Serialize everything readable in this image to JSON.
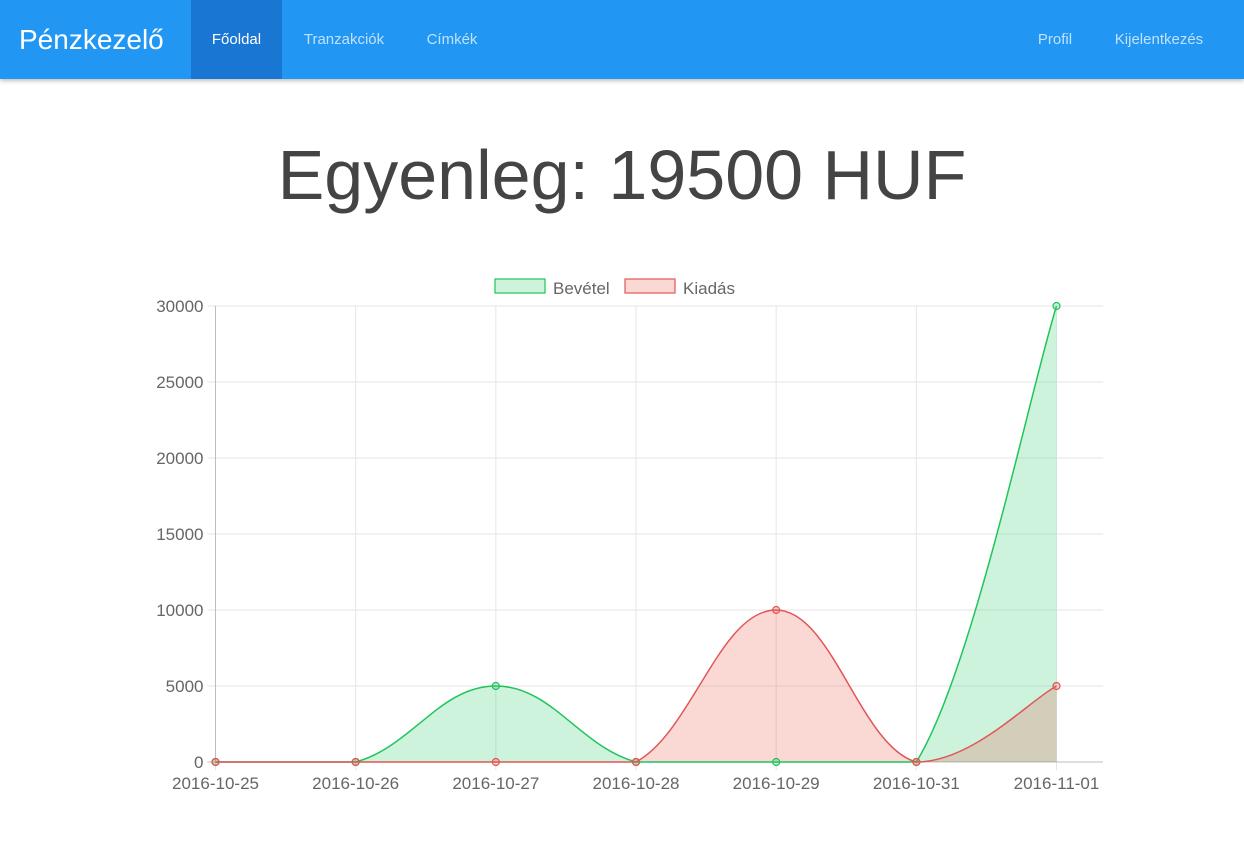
{
  "navbar": {
    "brand": "Pénzkezelő",
    "items": [
      {
        "label": "Főoldal",
        "active": true
      },
      {
        "label": "Tranzakciók",
        "active": false
      },
      {
        "label": "Címkék",
        "active": false
      }
    ],
    "right_items": [
      {
        "label": "Profil"
      },
      {
        "label": "Kijelentkezés"
      }
    ],
    "color": "#2196f3",
    "active_color": "#1976d2"
  },
  "balance": {
    "text": "Egyenleg: 19500 HUF"
  },
  "chart_data": {
    "type": "area",
    "categories": [
      "2016-10-25",
      "2016-10-26",
      "2016-10-27",
      "2016-10-28",
      "2016-10-29",
      "2016-10-31",
      "2016-11-01"
    ],
    "series": [
      {
        "name": "Bevétel",
        "values": [
          0,
          0,
          5000,
          0,
          0,
          0,
          30000
        ],
        "color": "#20c45a",
        "fill": "rgba(46,204,113,0.24)"
      },
      {
        "name": "Kiadás",
        "values": [
          0,
          0,
          0,
          0,
          10000,
          0,
          5000
        ],
        "color": "#e05757",
        "fill": "rgba(231,76,60,0.22)"
      }
    ],
    "y_ticks": [
      "30000",
      "25000",
      "20000",
      "15000",
      "10000",
      "5000",
      "0"
    ],
    "ylim": [
      0,
      30000
    ],
    "legend_position": "top",
    "grid": true,
    "title": "",
    "xlabel": "",
    "ylabel": ""
  }
}
